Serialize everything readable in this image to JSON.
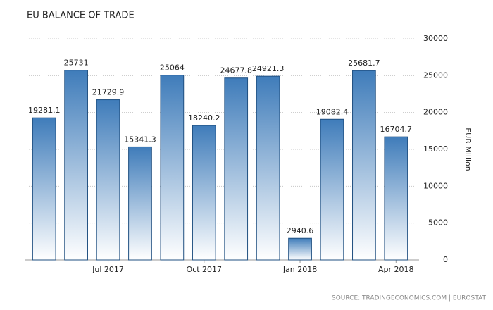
{
  "chart_data": {
    "type": "bar",
    "title": "EU BALANCE OF TRADE",
    "categories": [
      null,
      null,
      "Jul 2017",
      null,
      null,
      "Oct 2017",
      null,
      null,
      "Jan 2018",
      null,
      null,
      "Apr 2018"
    ],
    "values": [
      19281.1,
      25731,
      21729.9,
      15341.3,
      25064,
      18240.2,
      24677.8,
      24921.3,
      2940.6,
      19082.4,
      25681.7,
      16704.7
    ],
    "color": "#3f7cba",
    "ylim": [
      0,
      30000
    ],
    "yticks": [
      0,
      5000,
      10000,
      15000,
      20000,
      25000,
      30000
    ],
    "y_label": "EUR Million",
    "grid": true,
    "source": "SOURCE: TRADINGECONOMICS.COM | EUROSTAT"
  }
}
